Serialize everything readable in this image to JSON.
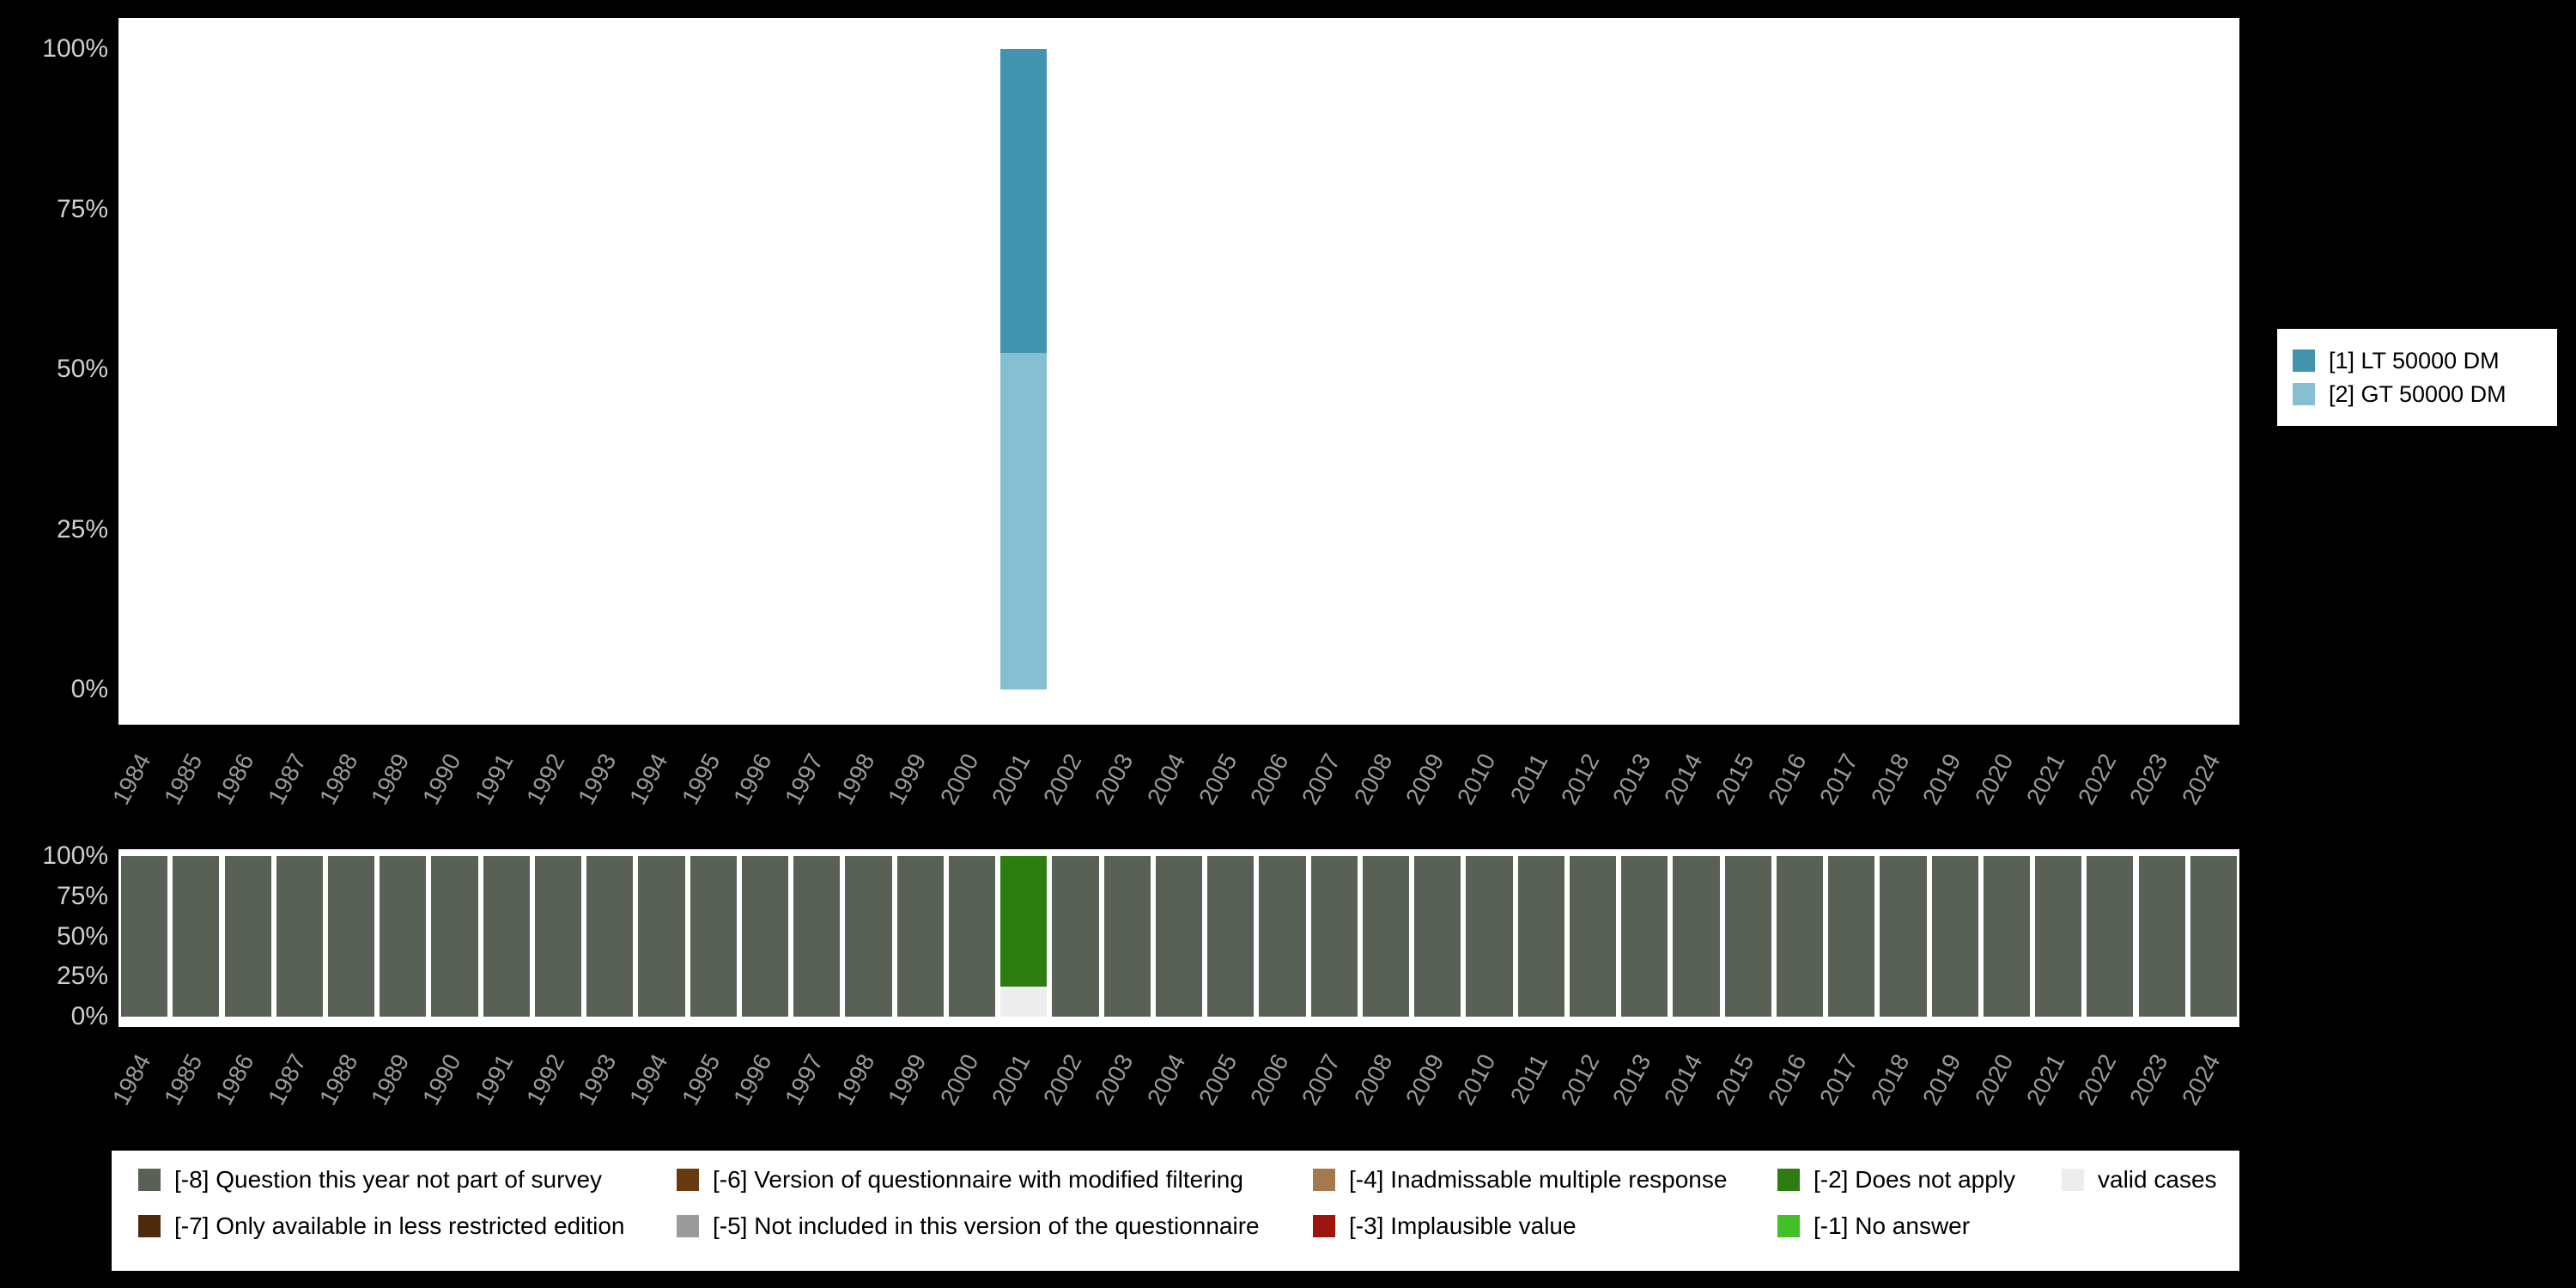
{
  "page": {
    "background": "#000000",
    "panel_background": "#ffffff"
  },
  "colors": {
    "lt_50000": "#4193ae",
    "gt_50000": "#87bfd2",
    "m8": "#596156",
    "m7": "#4e2a0c",
    "m6": "#693a11",
    "m5": "#9b9b9b",
    "m4": "#a27a4e",
    "m3": "#9e1510",
    "m2": "#2d7c10",
    "m1": "#43bf28",
    "valid": "#ededed",
    "y_tick_text": "#cfcfcf",
    "x_tick_text": "#9b9b9b"
  },
  "chart_data": [
    {
      "name": "valid-values-by-year",
      "type": "bar",
      "stacked": true,
      "title": "",
      "xlabel": "",
      "ylabel": "",
      "ylim": [
        0,
        100
      ],
      "yticks": [
        100,
        75,
        50,
        25,
        0
      ],
      "ytick_labels": [
        "100%",
        "75%",
        "50%",
        "25%",
        "0%"
      ],
      "legend_position": "right",
      "grid": false,
      "categories": [
        "1984",
        "1985",
        "1986",
        "1987",
        "1988",
        "1989",
        "1990",
        "1991",
        "1992",
        "1993",
        "1994",
        "1995",
        "1996",
        "1997",
        "1998",
        "1999",
        "2000",
        "2001",
        "2002",
        "2003",
        "2004",
        "2005",
        "2006",
        "2007",
        "2008",
        "2009",
        "2010",
        "2011",
        "2012",
        "2013",
        "2014",
        "2015",
        "2016",
        "2017",
        "2018",
        "2019",
        "2020",
        "2021",
        "2022",
        "2023",
        "2024"
      ],
      "series": [
        {
          "name": "[1] LT 50000 DM",
          "color": "#4193ae",
          "values": [
            0,
            0,
            0,
            0,
            0,
            0,
            0,
            0,
            0,
            0,
            0,
            0,
            0,
            0,
            0,
            0,
            0,
            47.4,
            0,
            0,
            0,
            0,
            0,
            0,
            0,
            0,
            0,
            0,
            0,
            0,
            0,
            0,
            0,
            0,
            0,
            0,
            0,
            0,
            0,
            0,
            0
          ]
        },
        {
          "name": "[2] GT 50000 DM",
          "color": "#87bfd2",
          "values": [
            0,
            0,
            0,
            0,
            0,
            0,
            0,
            0,
            0,
            0,
            0,
            0,
            0,
            0,
            0,
            0,
            0,
            52.6,
            0,
            0,
            0,
            0,
            0,
            0,
            0,
            0,
            0,
            0,
            0,
            0,
            0,
            0,
            0,
            0,
            0,
            0,
            0,
            0,
            0,
            0,
            0
          ]
        }
      ]
    },
    {
      "name": "missing-values-by-year",
      "type": "bar",
      "stacked": true,
      "title": "",
      "xlabel": "",
      "ylabel": "",
      "ylim": [
        0,
        100
      ],
      "yticks": [
        100,
        75,
        50,
        25,
        0
      ],
      "ytick_labels": [
        "100%",
        "75%",
        "50%",
        "25%",
        "0%"
      ],
      "legend_position": "bottom",
      "grid": false,
      "categories": [
        "1984",
        "1985",
        "1986",
        "1987",
        "1988",
        "1989",
        "1990",
        "1991",
        "1992",
        "1993",
        "1994",
        "1995",
        "1996",
        "1997",
        "1998",
        "1999",
        "2000",
        "2001",
        "2002",
        "2003",
        "2004",
        "2005",
        "2006",
        "2007",
        "2008",
        "2009",
        "2010",
        "2011",
        "2012",
        "2013",
        "2014",
        "2015",
        "2016",
        "2017",
        "2018",
        "2019",
        "2020",
        "2021",
        "2022",
        "2023",
        "2024"
      ],
      "series": [
        {
          "name": "[-8] Question this year not part of survey",
          "color": "#596156",
          "values": [
            100,
            100,
            100,
            100,
            100,
            100,
            100,
            100,
            100,
            100,
            100,
            100,
            100,
            100,
            100,
            100,
            100,
            0,
            100,
            100,
            100,
            100,
            100,
            100,
            100,
            100,
            100,
            100,
            100,
            100,
            100,
            100,
            100,
            100,
            100,
            100,
            100,
            100,
            100,
            100,
            100
          ]
        },
        {
          "name": "[-2] Does not apply",
          "color": "#2d7c10",
          "values": [
            0,
            0,
            0,
            0,
            0,
            0,
            0,
            0,
            0,
            0,
            0,
            0,
            0,
            0,
            0,
            0,
            0,
            81.2,
            0,
            0,
            0,
            0,
            0,
            0,
            0,
            0,
            0,
            0,
            0,
            0,
            0,
            0,
            0,
            0,
            0,
            0,
            0,
            0,
            0,
            0,
            0
          ]
        },
        {
          "name": "valid cases",
          "color": "#ededed",
          "values": [
            0,
            0,
            0,
            0,
            0,
            0,
            0,
            0,
            0,
            0,
            0,
            0,
            0,
            0,
            0,
            0,
            0,
            18.8,
            0,
            0,
            0,
            0,
            0,
            0,
            0,
            0,
            0,
            0,
            0,
            0,
            0,
            0,
            0,
            0,
            0,
            0,
            0,
            0,
            0,
            0,
            0
          ]
        }
      ]
    }
  ],
  "right_legend": {
    "items": [
      {
        "label": "[1] LT 50000 DM",
        "color": "#4193ae"
      },
      {
        "label": "[2] GT 50000 DM",
        "color": "#87bfd2"
      }
    ]
  },
  "missing_legend": {
    "items": [
      {
        "label": "[-8] Question this year not part of survey",
        "color": "#596156",
        "col": 0,
        "row": 0
      },
      {
        "label": "[-7] Only available in less restricted edition",
        "color": "#4e2a0c",
        "col": 0,
        "row": 1
      },
      {
        "label": "[-6] Version of questionnaire with modified filtering",
        "color": "#693a11",
        "col": 1,
        "row": 0
      },
      {
        "label": "[-5] Not included in this version of the questionnaire",
        "color": "#9b9b9b",
        "col": 1,
        "row": 1
      },
      {
        "label": "[-4] Inadmissable multiple response",
        "color": "#a27a4e",
        "col": 2,
        "row": 0
      },
      {
        "label": "[-3] Implausible value",
        "color": "#9e1510",
        "col": 2,
        "row": 1
      },
      {
        "label": "[-2] Does not apply",
        "color": "#2d7c10",
        "col": 3,
        "row": 0
      },
      {
        "label": "[-1] No answer",
        "color": "#43bf28",
        "col": 3,
        "row": 1
      },
      {
        "label": "valid cases",
        "color": "#ededed",
        "col": 4,
        "row": 0
      }
    ]
  }
}
